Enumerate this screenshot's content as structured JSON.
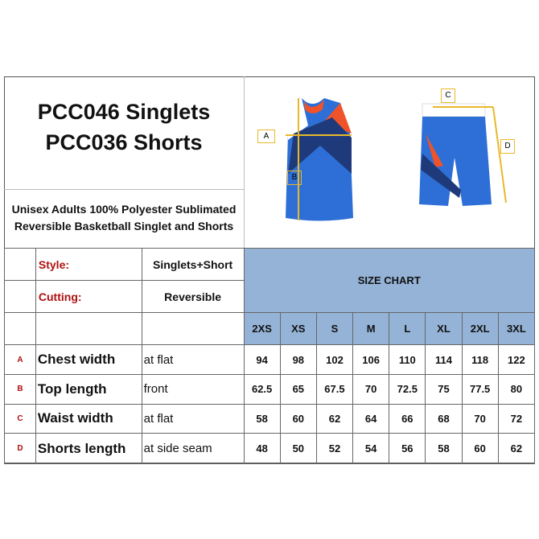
{
  "title": {
    "line1": "PCC046  Singlets",
    "line2": "PCC036 Shorts"
  },
  "subtitle": {
    "line1": "Unisex Adults 100% Polyester Sublimated",
    "line2": "Reversible Basketball Singlet and Shorts"
  },
  "diagram_labels": {
    "a": "A",
    "b": "B",
    "c": "C",
    "d": "D"
  },
  "info": [
    {
      "label": "Style:",
      "value": "Singlets+Short"
    },
    {
      "label": "Cutting:",
      "value": "Reversible"
    }
  ],
  "size_chart_header": "SIZE CHART",
  "sizes": [
    "2XS",
    "XS",
    "S",
    "M",
    "L",
    "XL",
    "2XL",
    "3XL"
  ],
  "rows": [
    {
      "letter": "A",
      "name": "Chest width",
      "where": "at flat",
      "values": [
        "94",
        "98",
        "102",
        "106",
        "110",
        "114",
        "118",
        "122"
      ]
    },
    {
      "letter": "B",
      "name": "Top length",
      "where": "front",
      "values": [
        "62.5",
        "65",
        "67.5",
        "70",
        "72.5",
        "75",
        "77.5",
        "80"
      ]
    },
    {
      "letter": "C",
      "name": "Waist width",
      "where": "at flat",
      "values": [
        "58",
        "60",
        "62",
        "64",
        "66",
        "68",
        "70",
        "72"
      ]
    },
    {
      "letter": "D",
      "name": "Shorts length",
      "where": "at side seam",
      "values": [
        "48",
        "50",
        "52",
        "54",
        "56",
        "58",
        "60",
        "62"
      ]
    }
  ],
  "colors": {
    "header_blue": "#95b3d7",
    "label_red": "#b01010",
    "garment_blue": "#2d6fd6",
    "garment_navy": "#1f3a7a",
    "garment_orange": "#f0532a",
    "arrow_yellow": "#e8b82a"
  }
}
